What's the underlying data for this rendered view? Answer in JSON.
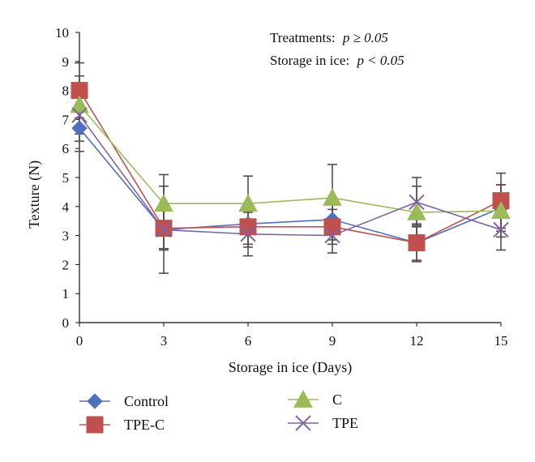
{
  "chart_data": {
    "type": "line",
    "xlabel": "Storage in ice (Days)",
    "ylabel": "Texture (N)",
    "x": [
      0,
      3,
      6,
      9,
      12,
      15
    ],
    "xlim": [
      0,
      15
    ],
    "ylim": [
      0,
      10
    ],
    "xticks": [
      "0",
      "3",
      "6",
      "9",
      "12",
      "15"
    ],
    "yticks": [
      "0",
      "1",
      "2",
      "3",
      "4",
      "5",
      "6",
      "7",
      "8",
      "9",
      "10"
    ],
    "grid": false,
    "legend_position": "bottom",
    "annotations": {
      "treatments_label": "Treatments:",
      "treatments_stat": "p ≥ 0.05",
      "storage_label": "Storage in ice:",
      "storage_stat": "p < 0.05"
    },
    "series": [
      {
        "name": "Control",
        "color": "#4f6fbf",
        "marker": "diamond",
        "values": [
          6.7,
          3.2,
          3.4,
          3.55,
          2.75,
          3.95
        ],
        "error": [
          0.8,
          0.7,
          0.7,
          0.7,
          0.6,
          0.8
        ]
      },
      {
        "name": "TPE-C",
        "color": "#c0504d",
        "marker": "square",
        "values": [
          8.0,
          3.25,
          3.3,
          3.3,
          2.75,
          4.2
        ],
        "error": [
          0.95,
          0.7,
          0.7,
          0.6,
          0.65,
          0.95
        ]
      },
      {
        "name": "C",
        "color": "#9bbb59",
        "marker": "triangle",
        "values": [
          7.5,
          4.1,
          4.1,
          4.3,
          3.8,
          3.85
        ],
        "error": [
          1.0,
          1.0,
          0.95,
          1.15,
          0.9,
          0.9
        ]
      },
      {
        "name": "TPE",
        "color": "#8064a2",
        "marker": "x",
        "values": [
          7.15,
          3.2,
          3.05,
          3.0,
          4.15,
          3.2
        ],
        "error": [
          0.9,
          1.5,
          0.75,
          0.6,
          0.85,
          0.7
        ]
      }
    ]
  }
}
